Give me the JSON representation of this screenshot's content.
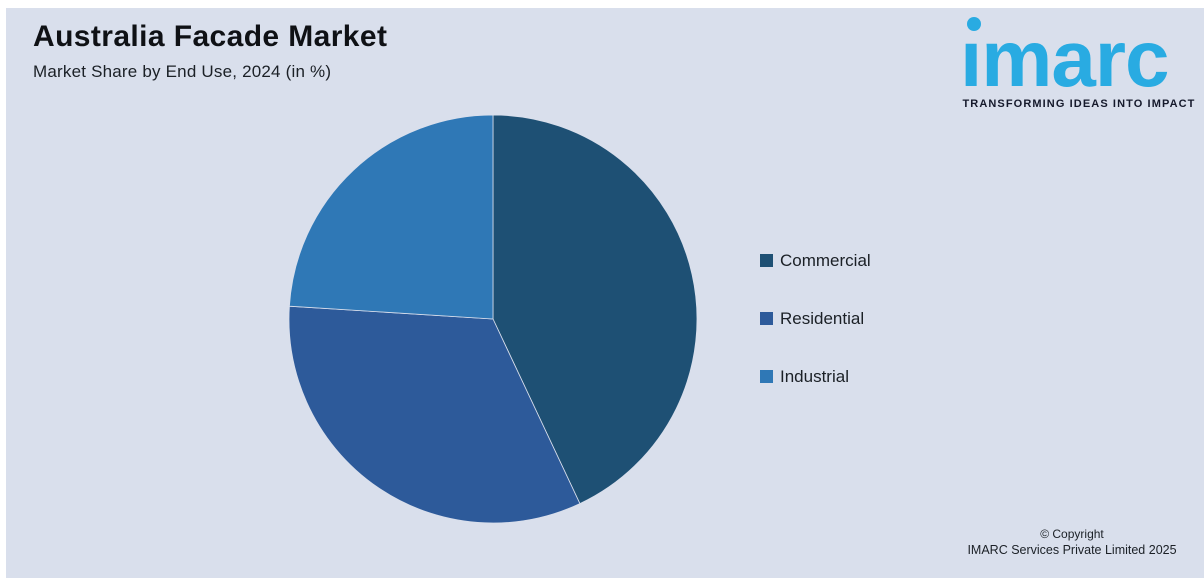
{
  "colors": {
    "background": "#d9dfec",
    "title_text": "#0f1115",
    "body_text": "#1b2026",
    "logo_blue": "#29abe2",
    "tagline_text": "#15192b"
  },
  "header": {
    "title": "Australia Facade Market",
    "subtitle": "Market Share by End Use, 2024 (in %)"
  },
  "logo": {
    "text": "imarc",
    "tagline": "TRANSFORMING IDEAS INTO IMPACT"
  },
  "footer": {
    "copyright_line1": "© Copyright",
    "copyright_line2": "IMARC Services Private Limited 2025"
  },
  "chart_data": {
    "type": "pie",
    "title": "Australia Facade Market",
    "subtitle": "Market Share by End Use, 2024 (in %)",
    "unit": "%",
    "start_angle_deg": 0,
    "direction": "clockwise",
    "legend_position": "right",
    "slices": [
      {
        "label": "Commercial",
        "value": 43,
        "color": "#1e5074"
      },
      {
        "label": "Residential",
        "value": 33,
        "color": "#2d5a9a"
      },
      {
        "label": "Industrial",
        "value": 24,
        "color": "#2f78b6"
      }
    ]
  }
}
